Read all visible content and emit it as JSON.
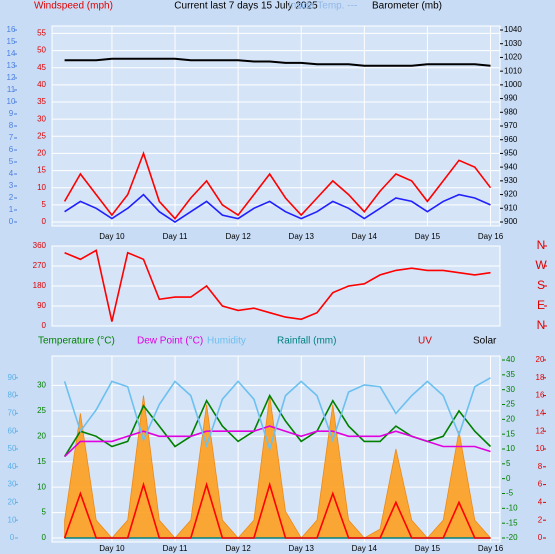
{
  "chart_data": [
    {
      "type": "line",
      "title": "Current last 7 days 15 July 2025",
      "ylabel": "Windspeed (mph)",
      "y2label": "Barometer (mb)",
      "annotation": "Inside Temp. ---",
      "x": [
        9.25,
        9.5,
        9.75,
        10,
        10.25,
        10.5,
        10.75,
        11,
        11.25,
        11.5,
        11.75,
        12,
        12.25,
        12.5,
        12.75,
        13,
        13.25,
        13.5,
        13.75,
        14,
        14.25,
        14.5,
        14.75,
        15,
        15.25,
        15.5,
        15.75,
        16
      ],
      "xlim": [
        9.05,
        16.15
      ],
      "xticks": [
        {
          "value": 10,
          "label": "Day 10"
        },
        {
          "value": 11,
          "label": "Day 11"
        },
        {
          "value": 12,
          "label": "Day 12"
        },
        {
          "value": 13,
          "label": "Day 13"
        },
        {
          "value": 14,
          "label": "Day 14"
        },
        {
          "value": 15,
          "label": "Day 15"
        },
        {
          "value": 16,
          "label": "Day 16"
        }
      ],
      "ylim": [
        0,
        56
      ],
      "yticks": [
        0,
        5,
        10,
        15,
        20,
        25,
        30,
        35,
        40,
        45,
        50,
        55
      ],
      "y2lim": [
        900,
        1040
      ],
      "y2ticks": [
        900,
        910,
        920,
        930,
        940,
        950,
        960,
        970,
        980,
        990,
        1000,
        1010,
        1020,
        1030,
        1040
      ],
      "y3lim": [
        0,
        16
      ],
      "y3ticks": [
        0,
        1,
        2,
        3,
        4,
        5,
        6,
        7,
        8,
        9,
        10,
        11,
        12,
        13,
        14,
        15,
        16
      ],
      "series": [
        {
          "color": "#ff0000",
          "axis": "y",
          "values": [
            6,
            14,
            8,
            2,
            8,
            20,
            6,
            1,
            7,
            12,
            5,
            2,
            8,
            14,
            7,
            2,
            7,
            12,
            8,
            3,
            9,
            14,
            12,
            6,
            12,
            18,
            16,
            10
          ]
        },
        {
          "color": "#2020ff",
          "axis": "y",
          "values": [
            3,
            6,
            4,
            1,
            4,
            8,
            3,
            0,
            3,
            6,
            2,
            1,
            4,
            6,
            3,
            1,
            3,
            6,
            4,
            1,
            4,
            7,
            6,
            3,
            6,
            8,
            7,
            5
          ]
        },
        {
          "color": "#000000",
          "axis": "y2",
          "values": [
            1018,
            1018,
            1018,
            1019,
            1019,
            1019,
            1019,
            1019,
            1018,
            1018,
            1018,
            1018,
            1017,
            1017,
            1016,
            1016,
            1015,
            1015,
            1015,
            1014,
            1014,
            1014,
            1014,
            1015,
            1015,
            1015,
            1015,
            1014
          ]
        }
      ]
    },
    {
      "type": "line",
      "x": [
        9.25,
        9.5,
        9.75,
        10,
        10.25,
        10.5,
        10.75,
        11,
        11.25,
        11.5,
        11.75,
        12,
        12.25,
        12.5,
        12.75,
        13,
        13.25,
        13.5,
        13.75,
        14,
        14.25,
        14.5,
        14.75,
        15,
        15.25,
        15.5,
        15.75,
        16
      ],
      "xlim": [
        9.05,
        16.15
      ],
      "ylim": [
        0,
        360
      ],
      "yticks": [
        0,
        90,
        180,
        270,
        360
      ],
      "y2lim": [
        0,
        360
      ],
      "y2ticks": [
        {
          "value": 360,
          "label": "N"
        },
        {
          "value": 270,
          "label": "W"
        },
        {
          "value": 180,
          "label": "S"
        },
        {
          "value": 90,
          "label": "E"
        },
        {
          "value": 0,
          "label": "N"
        }
      ],
      "series": [
        {
          "color": "#ff0000",
          "axis": "y",
          "values": [
            330,
            300,
            340,
            20,
            330,
            300,
            120,
            130,
            130,
            180,
            90,
            70,
            80,
            60,
            40,
            30,
            60,
            150,
            180,
            190,
            230,
            250,
            260,
            250,
            250,
            240,
            230,
            240
          ]
        }
      ]
    },
    {
      "type": "line",
      "x": [
        9.25,
        9.5,
        9.75,
        10,
        10.25,
        10.5,
        10.75,
        11,
        11.25,
        11.5,
        11.75,
        12,
        12.25,
        12.5,
        12.75,
        13,
        13.25,
        13.5,
        13.75,
        14,
        14.25,
        14.5,
        14.75,
        15,
        15.25,
        15.5,
        15.75,
        16
      ],
      "xlim": [
        9.05,
        16.15
      ],
      "xticks": [
        {
          "value": 10,
          "label": "Day 10"
        },
        {
          "value": 11,
          "label": "Day 11"
        },
        {
          "value": 12,
          "label": "Day 12"
        },
        {
          "value": 13,
          "label": "Day 13"
        },
        {
          "value": 14,
          "label": "Day 14"
        },
        {
          "value": 15,
          "label": "Day 15"
        },
        {
          "value": 16,
          "label": "Day 16"
        }
      ],
      "ylim": [
        0,
        35
      ],
      "yticks": [
        0,
        5,
        10,
        15,
        20,
        25,
        30
      ],
      "y3lim": [
        0,
        100
      ],
      "y3ticks": [
        0,
        10,
        20,
        30,
        40,
        50,
        60,
        70,
        80,
        90
      ],
      "y2lim": [
        -20,
        40
      ],
      "y2ticks": [
        -20,
        -15,
        -10,
        -5,
        0,
        5,
        10,
        15,
        20,
        25,
        30,
        35,
        40
      ],
      "y4lim": [
        0,
        20
      ],
      "y4ticks": [
        0,
        2,
        4,
        6,
        8,
        10,
        12,
        14,
        16,
        18,
        20
      ],
      "series": [
        {
          "name": "Temperature (°C)",
          "color": "#008000",
          "axis": "y",
          "values": [
            16,
            21,
            20,
            18,
            19,
            26,
            22,
            18,
            20,
            27,
            22,
            19,
            21,
            28,
            23,
            19,
            21,
            27,
            22,
            19,
            19,
            22,
            20,
            19,
            20,
            25,
            21,
            18
          ]
        },
        {
          "name": "Dew Point (°C)",
          "color": "#e000e0",
          "axis": "y",
          "values": [
            16,
            19,
            19,
            19,
            20,
            21,
            20,
            20,
            20,
            21,
            21,
            21,
            21,
            22,
            21,
            20,
            21,
            21,
            20,
            20,
            20,
            21,
            20,
            19,
            18,
            18,
            18,
            17
          ]
        },
        {
          "name": "Humidity",
          "color": "#6cc0f0",
          "axis": "y3",
          "values": [
            88,
            60,
            72,
            88,
            85,
            55,
            75,
            88,
            80,
            52,
            78,
            88,
            78,
            50,
            80,
            88,
            80,
            55,
            82,
            86,
            85,
            70,
            80,
            88,
            80,
            58,
            85,
            90
          ]
        },
        {
          "name": "Rainfall (mm)",
          "color": "#008080",
          "axis": "y4",
          "values": [
            0,
            0,
            0,
            0,
            0,
            0,
            0,
            0,
            0,
            0,
            0,
            0,
            0,
            0,
            0,
            0,
            0,
            0,
            0,
            0,
            0,
            0,
            0,
            0,
            0,
            0,
            0,
            0
          ]
        },
        {
          "name": "UV",
          "color": "#ff0000",
          "axis": "y4",
          "values": [
            0,
            5,
            0,
            0,
            0,
            6,
            0,
            0,
            0,
            6,
            0,
            0,
            0,
            6,
            0,
            0,
            0,
            5,
            0,
            0,
            0,
            4,
            0,
            0,
            0,
            4,
            0,
            0
          ]
        },
        {
          "name": "Solar",
          "color": "#ffa020",
          "axis": "y4",
          "style": "area",
          "values": [
            2,
            14,
            2,
            0,
            2,
            16,
            2,
            0,
            2,
            15,
            2,
            0,
            2,
            16,
            3,
            0,
            2,
            15,
            2,
            0,
            1,
            10,
            2,
            0,
            2,
            12,
            2,
            0
          ]
        }
      ]
    }
  ]
}
